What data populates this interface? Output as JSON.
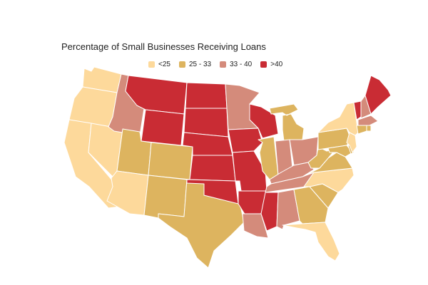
{
  "title": "Percentage of Small Businesses Receiving Loans",
  "legend": [
    {
      "label": "<25",
      "color": "#FDD99B"
    },
    {
      "label": "25 - 33",
      "color": "#DDB45F"
    },
    {
      "label": "33 - 40",
      "color": "#D48B7B"
    },
    {
      "label": ">40",
      "color": "#C92C34"
    }
  ],
  "colors": {
    "lt25": "#FDD99B",
    "b25_33": "#DDB45F",
    "b33_40": "#D48B7B",
    "gt40": "#C92C34",
    "border": "#ffffff"
  },
  "states": {
    "WA": "<25",
    "OR": "<25",
    "CA": "<25",
    "NV": "<25",
    "AZ": "<25",
    "ID": "33 - 40",
    "MT": ">40",
    "WY": ">40",
    "UT": "25 - 33",
    "CO": "25 - 33",
    "NM": "25 - 33",
    "TX": "25 - 33",
    "ND": ">40",
    "SD": ">40",
    "NE": ">40",
    "KS": ">40",
    "OK": ">40",
    "MN": "33 - 40",
    "IA": ">40",
    "MO": ">40",
    "AR": ">40",
    "LA": "33 - 40",
    "WI": ">40",
    "IL": "25 - 33",
    "MI": "25 - 33",
    "IN": "33 - 40",
    "OH": "33 - 40",
    "KY": "33 - 40",
    "TN": "33 - 40",
    "MS": ">40",
    "AL": "33 - 40",
    "GA": "25 - 33",
    "FL": "<25",
    "SC": "25 - 33",
    "NC": "<25",
    "VA": "25 - 33",
    "WV": "25 - 33",
    "PA": "25 - 33",
    "NY": "<25",
    "NJ": "<25",
    "MD": "25 - 33",
    "DE": "25 - 33",
    "VT": ">40",
    "NH": "33 - 40",
    "ME": ">40",
    "MA": "33 - 40",
    "CT": "25 - 33",
    "RI": "25 - 33"
  }
}
